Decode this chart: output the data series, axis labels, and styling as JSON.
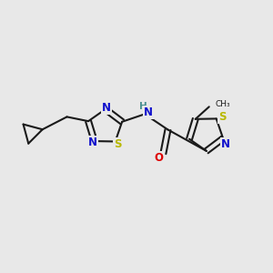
{
  "bg_color": "#e8e8e8",
  "bond_color": "#1a1a1a",
  "bond_width": 1.5,
  "atom_colors": {
    "N": "#1010cc",
    "S": "#b8b800",
    "O": "#dd0000",
    "C": "#1a1a1a",
    "H": "#4a9090"
  },
  "font_size": 8.5,
  "fig_size": [
    3.0,
    3.0
  ],
  "dpi": 100,
  "canvas_xlim": [
    0,
    10
  ],
  "canvas_ylim": [
    0,
    10
  ]
}
